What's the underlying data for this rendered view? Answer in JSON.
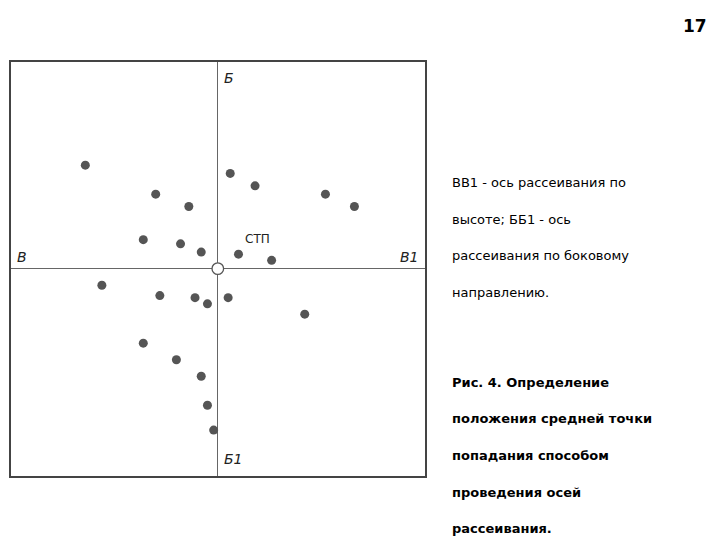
{
  "chart_data": {
    "type": "scatter",
    "x": [
      -3.2,
      -1.5,
      -0.7,
      0.3,
      0.9,
      2.6,
      3.3,
      -1.8,
      -0.9,
      -0.4,
      0.5,
      1.3,
      -2.8,
      -1.4,
      -0.55,
      -0.25,
      0.25,
      2.1,
      -1.8,
      -1.0,
      -0.4,
      -0.25,
      -0.1
    ],
    "values": [
      2.5,
      1.8,
      1.5,
      2.3,
      2.0,
      1.8,
      1.5,
      0.7,
      0.6,
      0.4,
      0.35,
      0.2,
      -0.4,
      -0.65,
      -0.7,
      -0.85,
      -0.7,
      -1.1,
      -1.8,
      -2.2,
      -2.6,
      -3.3,
      -3.9
    ],
    "xlim": [
      -5,
      5
    ],
    "ylim": [
      -5,
      5
    ],
    "tick_labels": false,
    "grid": false,
    "color": "#555555",
    "marker": "circle",
    "annotations": [
      "Б",
      "Б1",
      "В",
      "В1",
      "СТП",
      "17",
      "ВВ1 - ось рассеивания по",
      "высоте; ББ1 - ось",
      "рассеивания по боковому",
      "направлению.",
      "Рис. 4. Определение",
      "положения средней точки",
      "попадания способом",
      "проведения осей",
      "рассеивания."
    ]
  }
}
